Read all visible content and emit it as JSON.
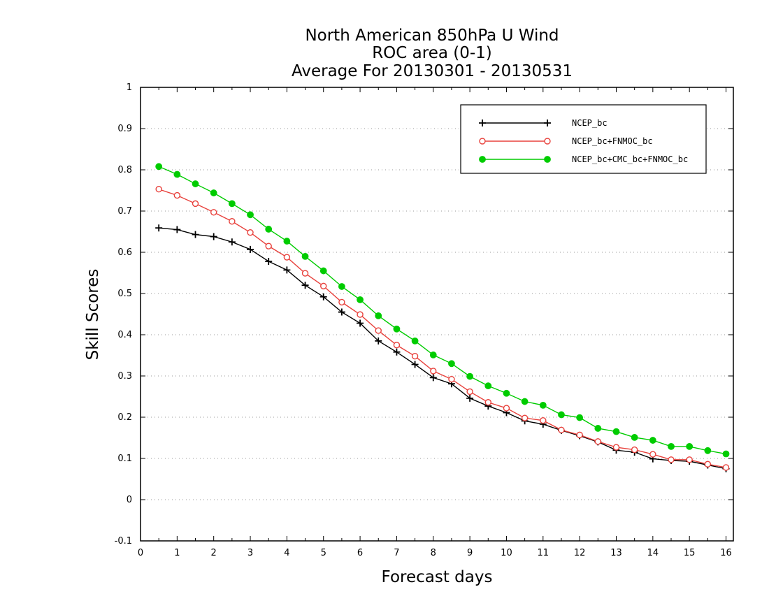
{
  "chart_data": {
    "type": "line",
    "title": [
      "North American 850hPa U Wind",
      "ROC area (0-1)",
      "Average For 20130301 - 20130531"
    ],
    "xlabel": "Forecast days",
    "ylabel": "Skill Scores",
    "xlim": [
      0,
      16.2
    ],
    "ylim": [
      -0.1,
      1
    ],
    "xticks": [
      0,
      1,
      2,
      3,
      4,
      5,
      6,
      7,
      8,
      9,
      10,
      11,
      12,
      13,
      14,
      15,
      16
    ],
    "yticks": [
      -0.1,
      0,
      0.1,
      0.2,
      0.3,
      0.4,
      0.5,
      0.6,
      0.7,
      0.8,
      0.9,
      1
    ],
    "ytick_labels": [
      "-0.1",
      "0",
      "0.1",
      "0.2",
      "0.3",
      "0.4",
      "0.5",
      "0.6",
      "0.7",
      "0.8",
      "0.9",
      "1"
    ],
    "grid": "horizontal dotted",
    "legend_position": "top-right",
    "x": [
      0.5,
      1,
      1.5,
      2,
      2.5,
      3,
      3.5,
      4,
      4.5,
      5,
      5.5,
      6,
      6.5,
      7,
      7.5,
      8,
      8.5,
      9,
      9.5,
      10,
      10.5,
      11,
      11.5,
      12,
      12.5,
      13,
      13.5,
      14,
      14.5,
      15,
      15.5,
      16
    ],
    "series": [
      {
        "name": "NCEP_bc",
        "color": "#000000",
        "marker": "plus",
        "values": [
          0.659,
          0.655,
          0.643,
          0.638,
          0.625,
          0.607,
          0.578,
          0.557,
          0.52,
          0.492,
          0.455,
          0.428,
          0.385,
          0.358,
          0.328,
          0.296,
          0.281,
          0.246,
          0.227,
          0.211,
          0.191,
          0.183,
          0.168,
          0.155,
          0.14,
          0.12,
          0.115,
          0.099,
          0.095,
          0.093,
          0.084,
          0.075
        ]
      },
      {
        "name": "NCEP_bc+FNMOC_bc",
        "color": "#e8413c",
        "marker": "open-circle",
        "values": [
          0.753,
          0.738,
          0.718,
          0.697,
          0.675,
          0.648,
          0.615,
          0.588,
          0.549,
          0.518,
          0.479,
          0.449,
          0.41,
          0.375,
          0.348,
          0.312,
          0.292,
          0.262,
          0.236,
          0.222,
          0.198,
          0.192,
          0.169,
          0.157,
          0.141,
          0.127,
          0.121,
          0.11,
          0.097,
          0.097,
          0.086,
          0.078
        ]
      },
      {
        "name": "NCEP_bc+CMC_bc+FNMOC_bc",
        "color": "#00cc00",
        "marker": "filled-circle",
        "values": [
          0.808,
          0.789,
          0.766,
          0.744,
          0.718,
          0.691,
          0.656,
          0.627,
          0.59,
          0.555,
          0.517,
          0.485,
          0.446,
          0.414,
          0.385,
          0.351,
          0.33,
          0.299,
          0.276,
          0.258,
          0.238,
          0.229,
          0.206,
          0.199,
          0.173,
          0.165,
          0.151,
          0.144,
          0.129,
          0.129,
          0.119,
          0.111
        ]
      }
    ]
  }
}
